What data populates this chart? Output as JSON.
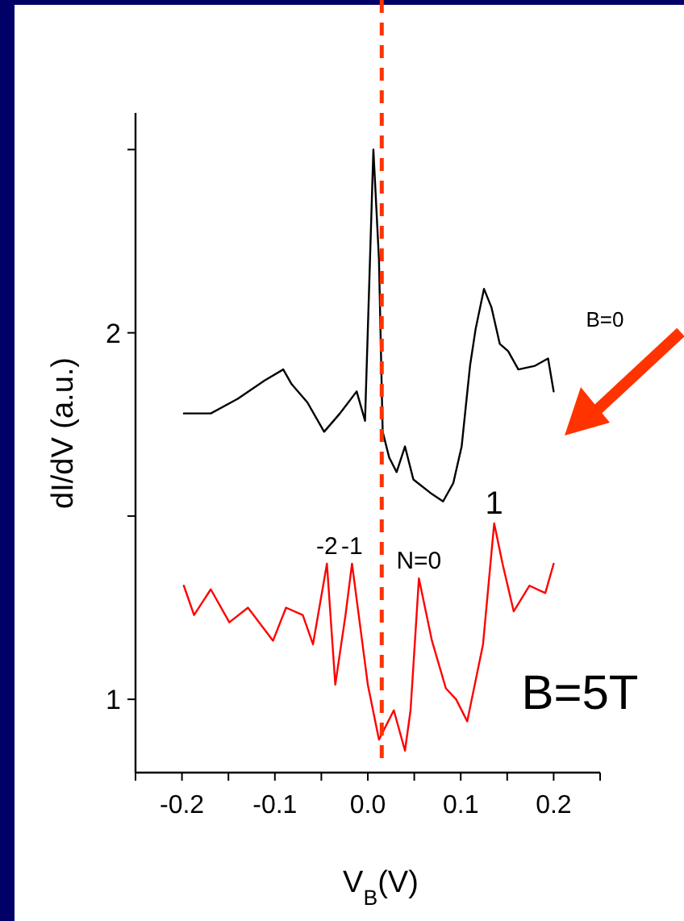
{
  "chart_data": {
    "type": "line",
    "xlabel": "V$_{B}$(V)",
    "ylabel": "dI/dV (a.u.)",
    "xlim": [
      -0.25,
      0.25
    ],
    "xticks": [
      {
        "value": -0.25,
        "label": null
      },
      {
        "value": -0.2,
        "label": "-0.2"
      },
      {
        "value": -0.15,
        "label": null
      },
      {
        "value": -0.1,
        "label": "-0.1"
      },
      {
        "value": -0.05,
        "label": null
      },
      {
        "value": 0,
        "label": "0.0"
      },
      {
        "value": 0.05,
        "label": null
      },
      {
        "value": 0.1,
        "label": "0.1"
      },
      {
        "value": 0.15,
        "label": null
      },
      {
        "value": 0.2,
        "label": "0.2"
      },
      {
        "value": 0.25,
        "label": null
      }
    ],
    "ylim": [
      0.8,
      2.6
    ],
    "yticks": [
      1,
      {
        "value": 1.5,
        "label": null
      },
      2,
      {
        "value": 2.5,
        "label": null
      }
    ],
    "series": [
      {
        "name": "B=0",
        "color": "#000000",
        "x": [
          -0.198,
          -0.169,
          -0.14,
          -0.111,
          -0.091,
          -0.082,
          -0.065,
          -0.047,
          -0.03,
          -0.012,
          -0.003,
          0.006,
          0.012,
          0.016,
          0.023,
          0.031,
          0.04,
          0.049,
          0.069,
          0.081,
          0.092,
          0.101,
          0.11,
          0.116,
          0.125,
          0.133,
          0.142,
          0.151,
          0.162,
          0.18,
          0.194,
          0.2
        ],
        "values": [
          1.78,
          1.78,
          1.82,
          1.87,
          1.9,
          1.86,
          1.81,
          1.73,
          1.78,
          1.84,
          1.76,
          2.5,
          2.2,
          1.73,
          1.66,
          1.62,
          1.69,
          1.6,
          1.56,
          1.54,
          1.59,
          1.69,
          1.91,
          2.01,
          2.12,
          2.07,
          1.97,
          1.95,
          1.9,
          1.91,
          1.93,
          1.84
        ]
      },
      {
        "name": "B=5T",
        "color": "#ff0000",
        "x": [
          -0.198,
          -0.187,
          -0.169,
          -0.149,
          -0.129,
          -0.102,
          -0.088,
          -0.07,
          -0.059,
          -0.044,
          -0.035,
          -0.024,
          -0.017,
          0,
          0.012,
          0.028,
          0.04,
          0.046,
          0.055,
          0.069,
          0.084,
          0.095,
          0.107,
          0.124,
          0.136,
          0.145,
          0.157,
          0.174,
          0.191,
          0.2
        ],
        "values": [
          1.31,
          1.23,
          1.3,
          1.21,
          1.25,
          1.16,
          1.25,
          1.23,
          1.15,
          1.37,
          1.04,
          1.23,
          1.37,
          1.04,
          0.89,
          0.97,
          0.86,
          0.97,
          1.33,
          1.16,
          1.03,
          1,
          0.94,
          1.15,
          1.48,
          1.37,
          1.24,
          1.31,
          1.29,
          1.37
        ]
      }
    ],
    "ref_lines": [
      {
        "axis": "x",
        "value": 0.015,
        "color": "#ff3300",
        "line_style": "dashed"
      }
    ],
    "annotations": [
      {
        "text": "-2",
        "x": -0.044,
        "y": 1.37
      },
      {
        "text": "-1",
        "x": -0.017,
        "y": 1.37
      },
      {
        "text": "N=0",
        "x": 0.055,
        "y": 1.33
      },
      {
        "text": "1",
        "x": 0.136,
        "y": 1.48
      }
    ],
    "grid": false,
    "marker": "none",
    "line_style": "solid"
  }
}
